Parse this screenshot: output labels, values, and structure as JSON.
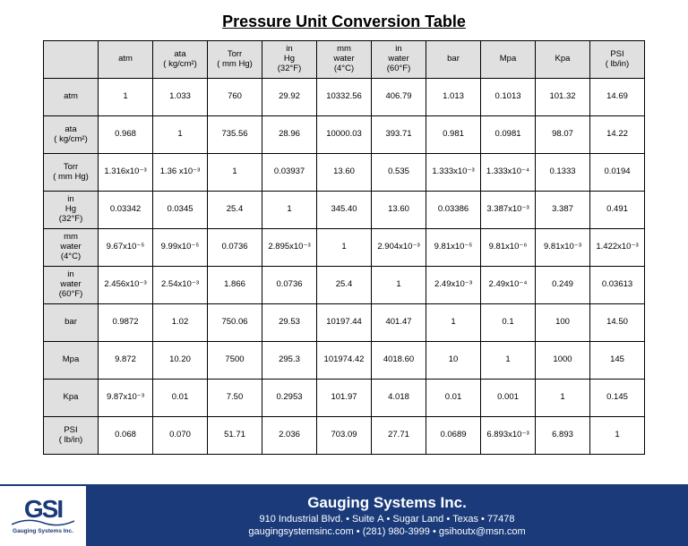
{
  "title": "Pressure Unit Conversion Table",
  "table": {
    "columns": [
      "atm",
      "ata\n( kg/cm²)",
      "Torr\n( mm Hg)",
      "in\nHg\n(32°F)",
      "mm\nwater\n(4°C)",
      "in\nwater\n(60°F)",
      "bar",
      "Mpa",
      "Kpa",
      "PSI\n( lb/in)"
    ],
    "row_headers": [
      "atm",
      "ata\n( kg/cm²)",
      "Torr\n( mm Hg)",
      "in\nHg\n(32°F)",
      "mm\nwater\n(4°C)",
      "in\nwater\n(60°F)",
      "bar",
      "Mpa",
      "Kpa",
      "PSI\n( lb/in)"
    ],
    "rows": [
      [
        "1",
        "1.033",
        "760",
        "29.92",
        "10332.56",
        "406.79",
        "1.013",
        "0.1013",
        "101.32",
        "14.69"
      ],
      [
        "0.968",
        "1",
        "735.56",
        "28.96",
        "10000.03",
        "393.71",
        "0.981",
        "0.0981",
        "98.07",
        "14.22"
      ],
      [
        "1.316x10⁻³",
        "1.36 x10⁻³",
        "1",
        "0.03937",
        "13.60",
        "0.535",
        "1.333x10⁻³",
        "1.333x10⁻⁴",
        "0.1333",
        "0.0194"
      ],
      [
        "0.03342",
        "0.0345",
        "25.4",
        "1",
        "345.40",
        "13.60",
        "0.03386",
        "3.387x10⁻³",
        "3.387",
        "0.491"
      ],
      [
        "9.67x10⁻⁵",
        "9.99x10⁻⁵",
        "0.0736",
        "2.895x10⁻³",
        "1",
        "2.904x10⁻³",
        "9.81x10⁻⁵",
        "9.81x10⁻⁶",
        "9.81x10⁻³",
        "1.422x10⁻³"
      ],
      [
        "2.456x10⁻³",
        "2.54x10⁻³",
        "1.866",
        "0.0736",
        "25.4",
        "1",
        "2.49x10⁻³",
        "2.49x10⁻⁴",
        "0.249",
        "0.03613"
      ],
      [
        "0.9872",
        "1.02",
        "750.06",
        "29.53",
        "10197.44",
        "401.47",
        "1",
        "0.1",
        "100",
        "14.50"
      ],
      [
        "9.872",
        "10.20",
        "7500",
        "295.3",
        "101974.42",
        "4018.60",
        "10",
        "1",
        "1000",
        "145"
      ],
      [
        "9.87x10⁻³",
        "0.01",
        "7.50",
        "0.2953",
        "101.97",
        "4.018",
        "0.01",
        "0.001",
        "1",
        "0.145"
      ],
      [
        "0.068",
        "0.070",
        "51.71",
        "2.036",
        "703.09",
        "27.71",
        "0.0689",
        "6.893x10⁻³",
        "6.893",
        "1"
      ]
    ],
    "header_bg": "#e0e0e0",
    "border_color": "#000000",
    "cell_fontsize": 9.5
  },
  "footer": {
    "logo_text": "GSI",
    "logo_subtext": "Gauging Systems Inc.",
    "company": "Gauging Systems Inc.",
    "address": "910 Industrial Blvd. • Suite A • Sugar Land • Texas • 77478",
    "contact": "gaugingsystemsinc.com • (281) 980-3999 • gsihoutx@msn.com",
    "bg_color": "#1a3a7a",
    "text_color": "#ffffff"
  }
}
